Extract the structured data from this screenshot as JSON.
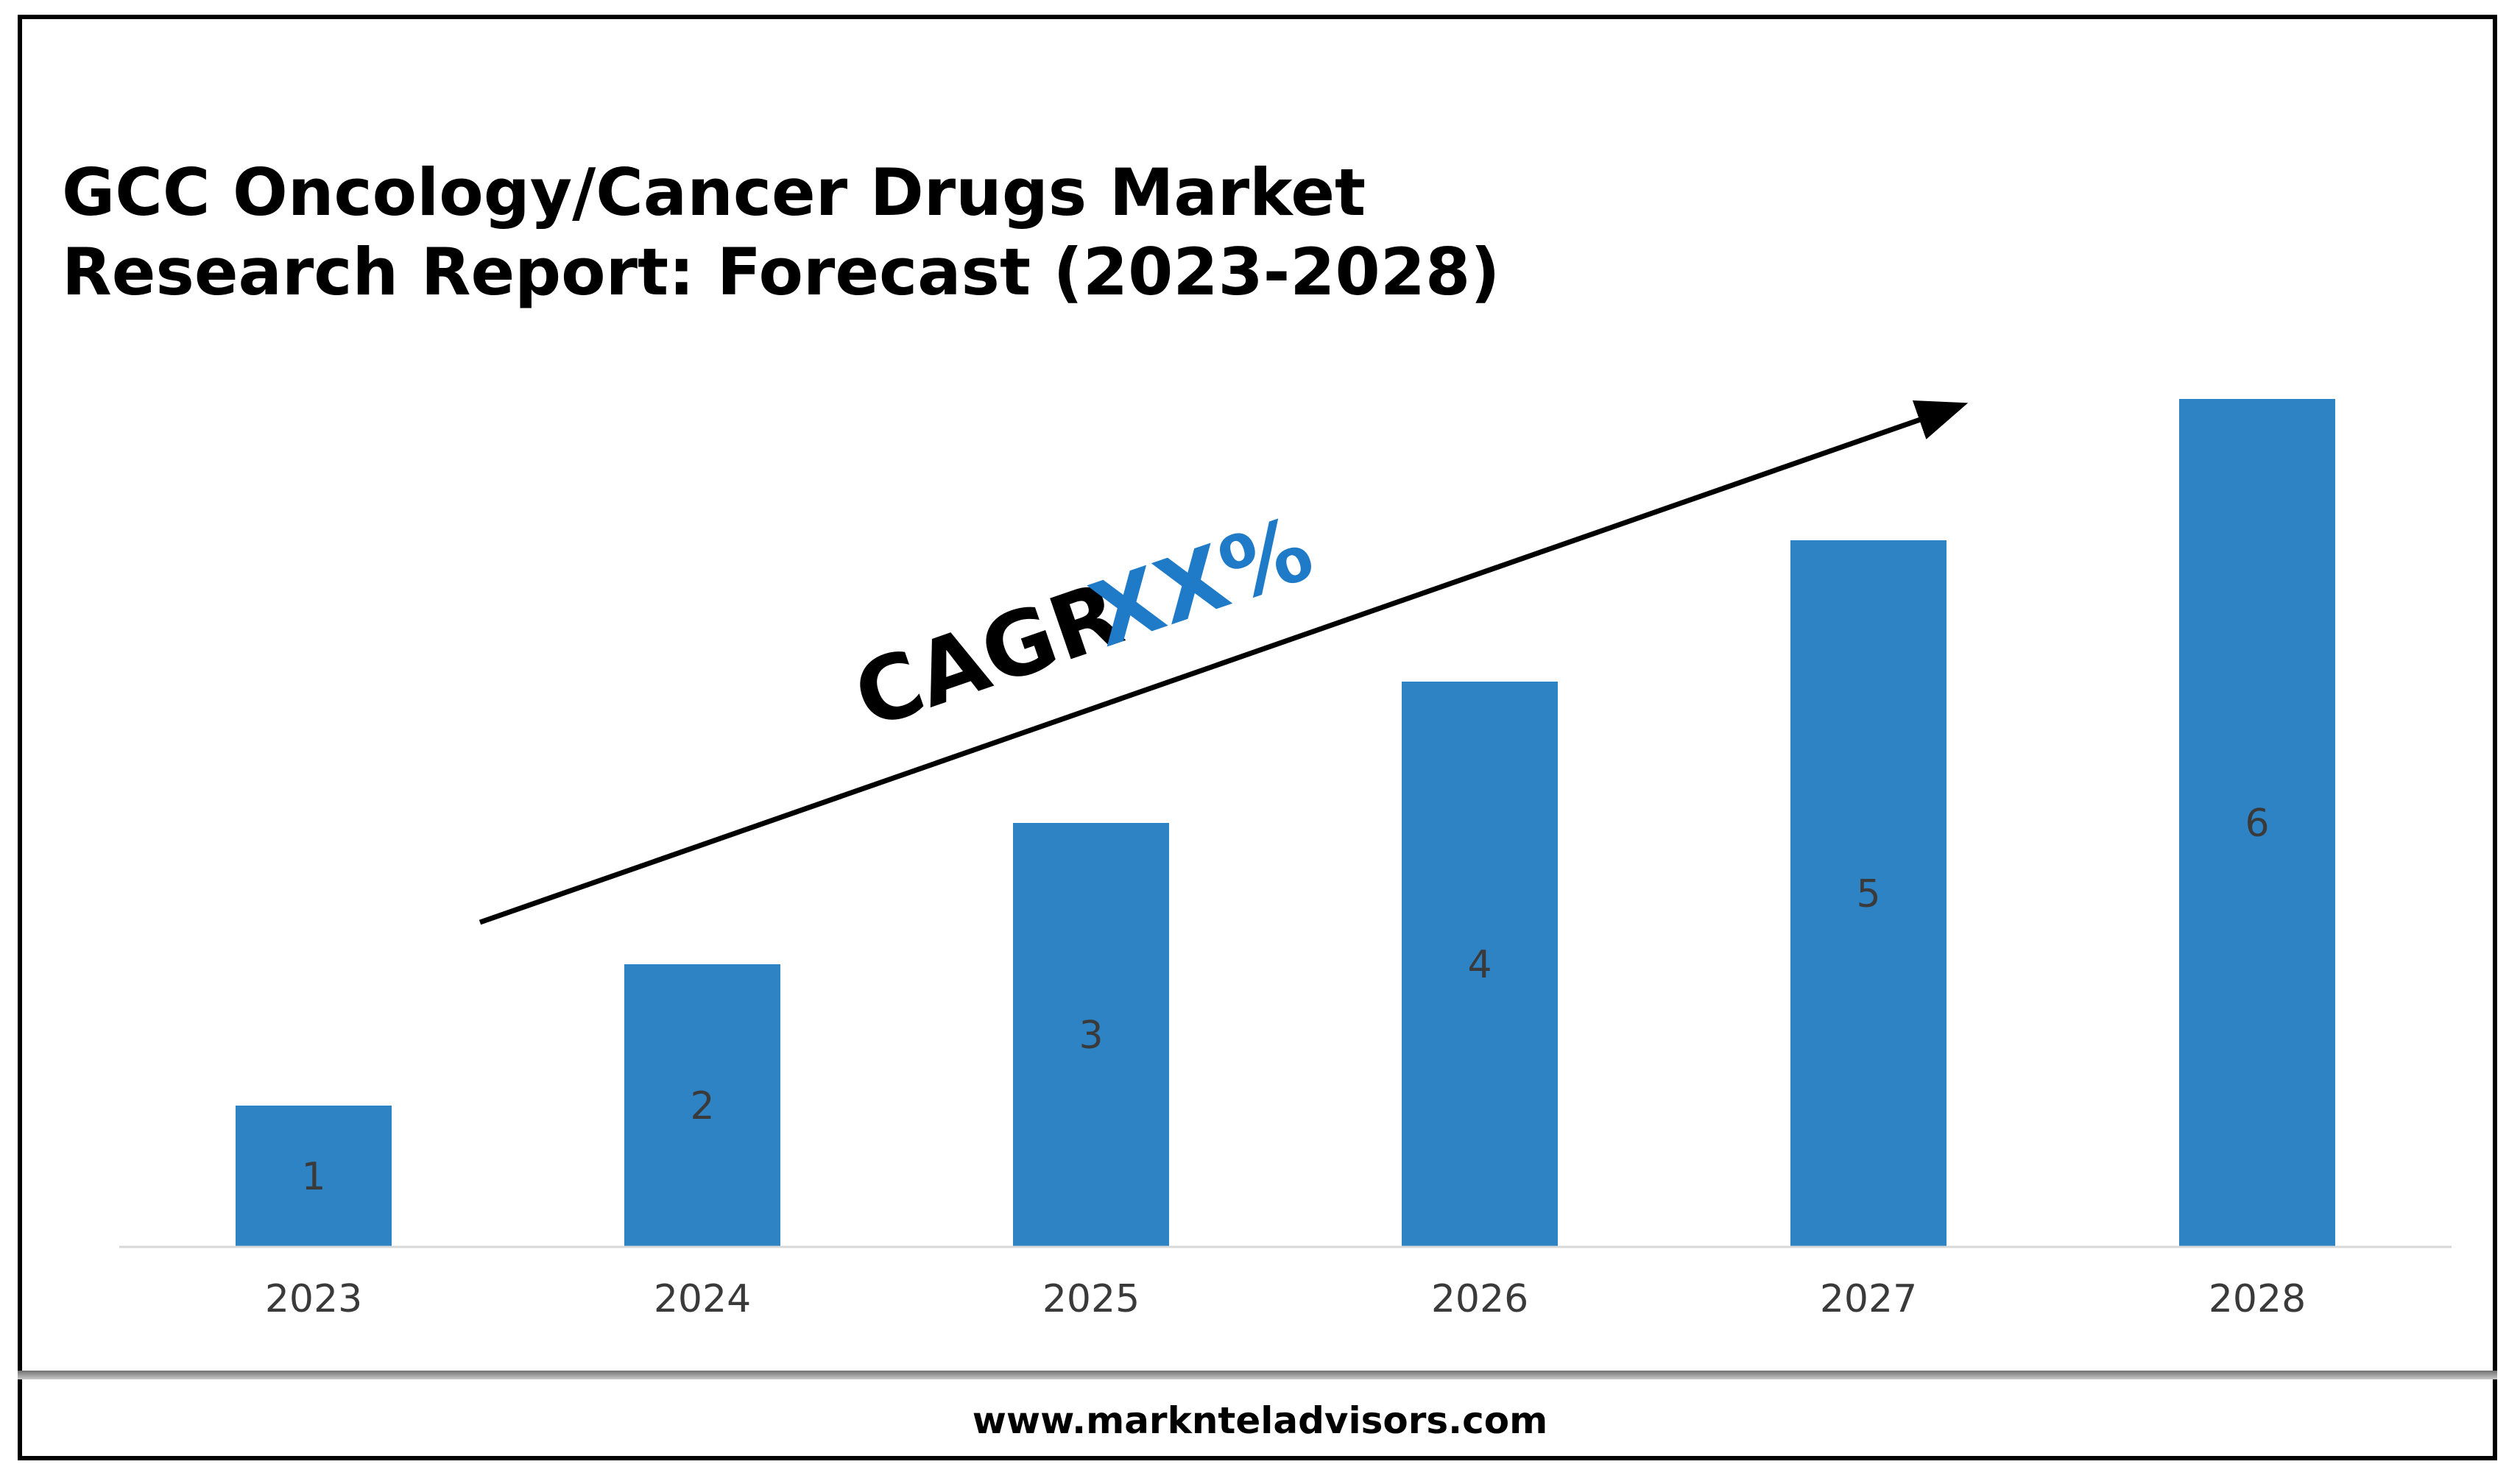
{
  "title_lines": [
    "GCC Oncology/Cancer Drugs Market",
    "Research Report: Forecast (2023-2028)"
  ],
  "annotation": {
    "cagr_label": "CAGR",
    "cagr_value": "XX%"
  },
  "footer": {
    "url": "www.marknteladvisors.com"
  },
  "colors": {
    "bar": "#2E83C5",
    "cagr_value": "#1F7BC7",
    "axis_text": "#3a3a3a",
    "bar_label": "#3a3a3a"
  },
  "chart_data": {
    "type": "bar",
    "title": "GCC Oncology/Cancer Drugs Market Research Report: Forecast (2023-2028)",
    "categories": [
      "2023",
      "2024",
      "2025",
      "2026",
      "2027",
      "2028"
    ],
    "values": [
      1,
      2,
      3,
      4,
      5,
      6
    ],
    "data_labels": [
      "1",
      "2",
      "3",
      "4",
      "5",
      "6"
    ],
    "xlabel": "",
    "ylabel": "",
    "ylim": [
      0,
      6
    ],
    "grid": false,
    "legend": "none"
  }
}
